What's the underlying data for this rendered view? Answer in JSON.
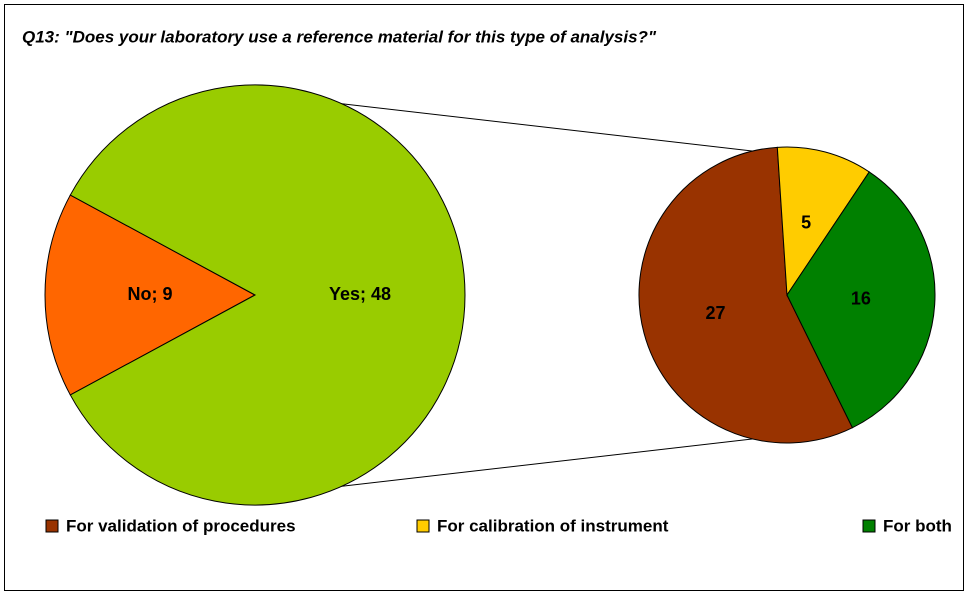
{
  "chart_data": {
    "type": "pie-of-pie",
    "title": "Q13: \"Does your laboratory use a reference material for this type of analysis?\"",
    "values": [
      9,
      48
    ],
    "value_labels": [
      "No; 9",
      "Yes; 48"
    ],
    "colors": [
      "#ff6600",
      "#99cc00"
    ],
    "secondary": {
      "values": [
        27,
        5,
        16
      ],
      "colors": [
        "#993300",
        "#ffcc00",
        "#008000"
      ],
      "names": [
        "For validation of procedures",
        "For calibration of instrument",
        "For both"
      ]
    }
  }
}
